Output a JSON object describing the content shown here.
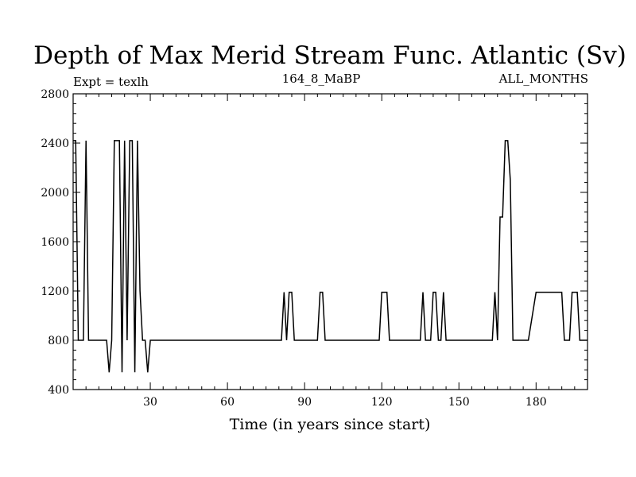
{
  "chart_data": {
    "type": "line",
    "title": "Depth of Max Merid Stream Func. Atlantic (Sv)",
    "subtitle_left": "Expt = texlh",
    "subtitle_center": "164_8_MaBP",
    "subtitle_right": "ALL_MONTHS",
    "xlabel": "Time (in years since start)",
    "ylabel": "",
    "xlim": [
      0,
      200
    ],
    "ylim": [
      400,
      2800
    ],
    "xticks": [
      30,
      60,
      90,
      120,
      150,
      180
    ],
    "yticks": [
      400,
      800,
      1200,
      1600,
      2000,
      2400,
      2800
    ],
    "series": [
      {
        "name": "Depth of Max Merid Stream Func.",
        "x": [
          0,
          1,
          2,
          3,
          4,
          5,
          6,
          7,
          8,
          9,
          10,
          11,
          12,
          13,
          14,
          15,
          16,
          17,
          18,
          19,
          20,
          21,
          22,
          23,
          24,
          25,
          26,
          27,
          28,
          29,
          30,
          31,
          32,
          33,
          34,
          35,
          40,
          50,
          60,
          70,
          80,
          81,
          82,
          83,
          84,
          85,
          86,
          87,
          95,
          96,
          97,
          98,
          99,
          100,
          110,
          119,
          120,
          121,
          122,
          123,
          124,
          130,
          134,
          135,
          136,
          137,
          138,
          139,
          140,
          141,
          142,
          143,
          144,
          145,
          146,
          147,
          150,
          160,
          163,
          164,
          165,
          166,
          167,
          168,
          169,
          170,
          171,
          175,
          176,
          177,
          180,
          181,
          182,
          190,
          191,
          192,
          193,
          194,
          195,
          196,
          197,
          200
        ],
        "values": [
          2420,
          2420,
          800,
          800,
          800,
          2420,
          800,
          800,
          800,
          800,
          800,
          800,
          800,
          800,
          540,
          800,
          2420,
          2420,
          2420,
          540,
          2420,
          800,
          2420,
          2420,
          540,
          2420,
          1200,
          800,
          800,
          540,
          800,
          800,
          800,
          800,
          800,
          800,
          800,
          800,
          800,
          800,
          800,
          800,
          1190,
          800,
          1190,
          1190,
          800,
          800,
          800,
          1190,
          1190,
          800,
          800,
          800,
          800,
          800,
          1190,
          1190,
          1190,
          800,
          800,
          800,
          800,
          800,
          1190,
          800,
          800,
          800,
          1190,
          1190,
          800,
          800,
          1190,
          800,
          800,
          800,
          800,
          800,
          800,
          1190,
          800,
          1800,
          1800,
          2420,
          2420,
          2100,
          800,
          800,
          800,
          800,
          1190,
          1190,
          1190,
          1190,
          800,
          800,
          800,
          1190,
          1190,
          1190,
          800,
          800
        ]
      }
    ]
  }
}
